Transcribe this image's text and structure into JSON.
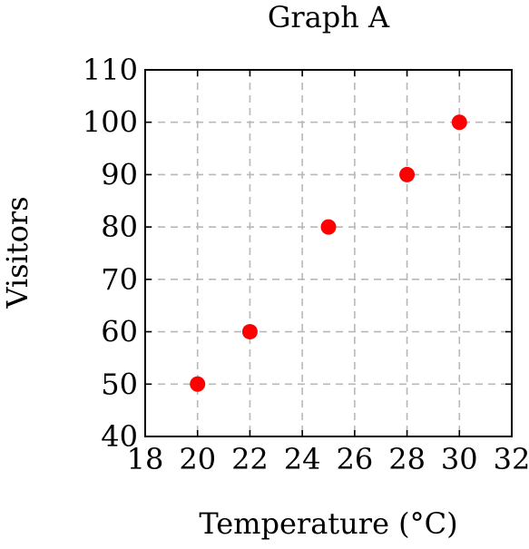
{
  "chart_data": {
    "type": "scatter",
    "title": "Graph A",
    "xlabel": "Temperature (°C)",
    "ylabel": "Visitors",
    "xlim": [
      18,
      32
    ],
    "ylim": [
      40,
      110
    ],
    "xticks": [
      18,
      20,
      22,
      24,
      26,
      28,
      30,
      32
    ],
    "yticks": [
      40,
      50,
      60,
      70,
      80,
      90,
      100,
      110
    ],
    "xtick_labels": [
      "18",
      "20",
      "22",
      "24",
      "26",
      "28",
      "30",
      "32"
    ],
    "ytick_labels": [
      "40",
      "50",
      "60",
      "70",
      "80",
      "90",
      "100",
      "110"
    ],
    "grid": true,
    "series": [
      {
        "x": [
          20,
          22,
          25,
          28,
          30
        ],
        "y": [
          50,
          60,
          80,
          90,
          100
        ],
        "color": "#ff0000"
      }
    ]
  }
}
